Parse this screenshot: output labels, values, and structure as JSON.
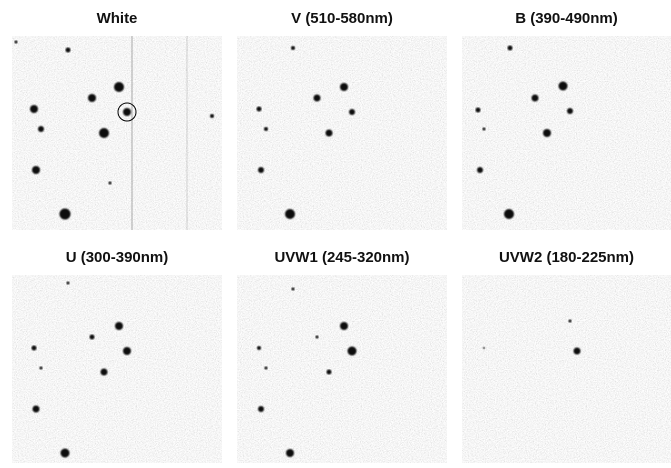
{
  "panels": [
    {
      "title": "White"
    },
    {
      "title": "V (510-580nm)"
    },
    {
      "title": "B (390-490nm)"
    },
    {
      "title": "U (300-390nm)"
    },
    {
      "title": "UVW1 (245-320nm)"
    },
    {
      "title": "UVW2 (180-225nm)"
    }
  ]
}
